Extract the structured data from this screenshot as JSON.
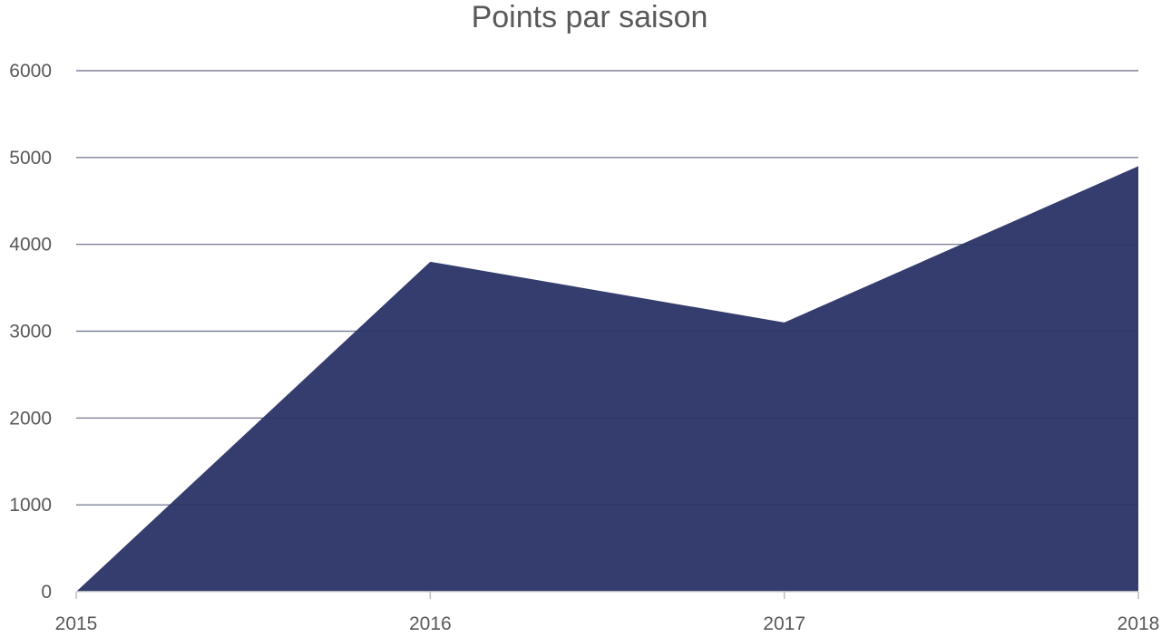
{
  "chart_data": {
    "type": "area",
    "title": "Points par saison",
    "xlabel": "",
    "ylabel": "",
    "x": [
      "2015",
      "2016",
      "2017",
      "2018"
    ],
    "series": [
      {
        "values": [
          0,
          3800,
          3100,
          4900
        ],
        "color": "#353d6e"
      }
    ],
    "ylim": [
      0,
      6000
    ],
    "yticks": [
      0,
      1000,
      2000,
      3000,
      4000,
      5000,
      6000
    ],
    "grid": true,
    "legend": "none"
  }
}
